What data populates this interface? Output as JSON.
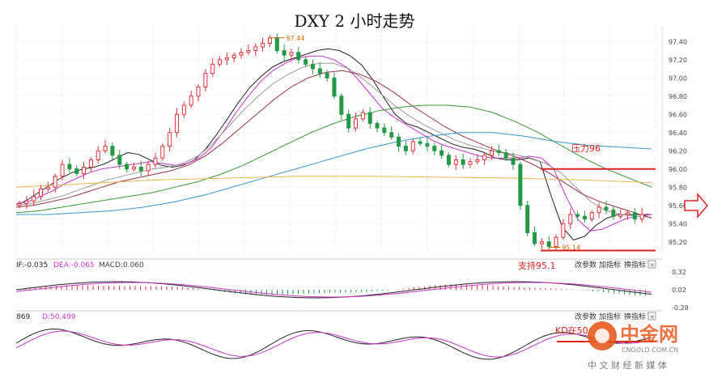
{
  "chart_data": {
    "type": "candlestick",
    "title": "DXY 2 小时走势",
    "ylim": [
      95.1,
      97.5
    ],
    "y_ticks": [
      "97.40",
      "97.20",
      "97.00",
      "96.80",
      "96.60",
      "96.40",
      "96.20",
      "96.00",
      "95.80",
      "95.60",
      "95.40",
      "95.20"
    ],
    "annotations": {
      "high_label": "97.44",
      "low_label": "95.14",
      "resistance_label": "压力96",
      "resistance_value": 96.0,
      "support_label": "支持95.1",
      "support_value": 95.14
    },
    "close_series": [
      95.62,
      95.65,
      95.7,
      95.78,
      95.8,
      95.92,
      96.05,
      96.0,
      95.95,
      96.02,
      96.1,
      96.2,
      96.25,
      96.15,
      96.05,
      96.0,
      96.02,
      95.98,
      96.05,
      96.12,
      96.25,
      96.4,
      96.6,
      96.7,
      96.8,
      96.9,
      97.05,
      97.15,
      97.2,
      97.22,
      97.25,
      97.28,
      97.3,
      97.34,
      97.38,
      97.44,
      97.3,
      97.25,
      97.28,
      97.2,
      97.15,
      97.1,
      97.05,
      97.0,
      96.8,
      96.6,
      96.45,
      96.55,
      96.62,
      96.5,
      96.45,
      96.4,
      96.35,
      96.25,
      96.2,
      96.3,
      96.28,
      96.25,
      96.2,
      96.15,
      96.05,
      96.1,
      96.05,
      96.08,
      96.1,
      96.15,
      96.2,
      96.18,
      96.12,
      96.05,
      95.6,
      95.3,
      95.18,
      95.2,
      95.15,
      95.25,
      95.4,
      95.5,
      95.48,
      95.45,
      95.52,
      95.58,
      95.55,
      95.48,
      95.5,
      95.52,
      95.45,
      95.5
    ],
    "ma_series": [
      {
        "color": "#222222",
        "values": [
          95.6,
          95.66,
          95.74,
          95.82,
          95.9,
          95.96,
          96.0,
          96.02,
          96.06,
          96.12,
          96.18,
          96.16,
          96.1,
          96.04,
          96.02,
          96.04,
          96.1,
          96.22,
          96.38,
          96.56,
          96.74,
          96.9,
          97.02,
          97.12,
          97.18,
          97.22,
          97.26,
          97.3,
          97.32,
          97.3,
          97.24,
          97.14,
          96.98,
          96.78,
          96.6,
          96.5,
          96.46,
          96.4,
          96.34,
          96.28,
          96.24,
          96.22,
          96.18,
          96.12,
          96.1,
          96.1,
          96.12,
          96.08,
          95.7,
          95.36,
          95.22,
          95.26,
          95.38,
          95.46,
          95.5,
          95.5,
          95.5,
          95.5
        ]
      },
      {
        "color": "#cc33cc",
        "values": [
          95.62,
          95.64,
          95.7,
          95.76,
          95.84,
          95.9,
          95.96,
          96.0,
          96.02,
          96.04,
          96.06,
          96.08,
          96.06,
          96.04,
          96.06,
          96.12,
          96.24,
          96.42,
          96.62,
          96.8,
          96.96,
          97.08,
          97.16,
          97.22,
          97.24,
          97.24,
          97.2,
          97.12,
          96.98,
          96.82,
          96.66,
          96.56,
          96.48,
          96.4,
          96.32,
          96.26,
          96.22,
          96.18,
          96.14,
          96.12,
          96.12,
          96.12,
          96.14,
          96.12,
          96.0,
          95.7,
          95.44,
          95.32,
          95.34,
          95.4,
          95.46,
          95.48,
          95.5
        ]
      },
      {
        "color": "#999999",
        "values": [
          95.6,
          95.62,
          95.66,
          95.7,
          95.76,
          95.82,
          95.88,
          95.92,
          95.96,
          96.0,
          96.02,
          96.06,
          96.14,
          96.28,
          96.46,
          96.64,
          96.8,
          96.94,
          97.04,
          97.12,
          97.16,
          97.16,
          97.1,
          96.98,
          96.84,
          96.7,
          96.58,
          96.48,
          96.4,
          96.32,
          96.26,
          96.22,
          96.18,
          96.16,
          96.12,
          96.06,
          95.96,
          95.8,
          95.64,
          95.54,
          95.5,
          95.48,
          95.47
        ]
      },
      {
        "color": "#993344",
        "values": [
          95.58,
          95.6,
          95.64,
          95.68,
          95.74,
          95.8,
          95.86,
          95.9,
          95.94,
          95.98,
          96.04,
          96.14,
          96.28,
          96.44,
          96.6,
          96.76,
          96.9,
          97.0,
          97.06,
          97.08,
          97.04,
          96.96,
          96.84,
          96.7,
          96.58,
          96.46,
          96.36,
          96.28,
          96.2,
          96.14,
          96.06,
          95.96,
          95.84,
          95.72,
          95.64,
          95.58,
          95.52,
          95.46
        ]
      },
      {
        "color": "#339933",
        "values": [
          95.52,
          95.54,
          95.58,
          95.62,
          95.66,
          95.7,
          95.74,
          95.8,
          95.86,
          95.94,
          96.04,
          96.16,
          96.28,
          96.4,
          96.5,
          96.58,
          96.64,
          96.68,
          96.7,
          96.7,
          96.68,
          96.62,
          96.52,
          96.4,
          96.26,
          96.12,
          96.0,
          95.9,
          95.8
        ]
      },
      {
        "color": "#3399cc",
        "values": [
          95.5,
          95.5,
          95.52,
          95.54,
          95.58,
          95.64,
          95.72,
          95.82,
          95.92,
          96.02,
          96.12,
          96.22,
          96.3,
          96.36,
          96.4,
          96.4,
          96.36,
          96.3,
          96.26,
          96.24,
          96.22
        ]
      },
      {
        "color": "#e6b84d",
        "values": [
          95.8,
          95.84,
          95.88,
          95.9,
          95.92,
          95.92,
          95.91,
          95.9,
          95.88,
          95.85
        ]
      }
    ],
    "indicator_1": {
      "label_prefix": "IF:-0.035",
      "dea_label": "DEA:-0.065",
      "macd_label": "MACD:0.060",
      "y_ticks": [
        "0.32",
        "0.02",
        "-0.28"
      ]
    },
    "indicator_2": {
      "label_prefix": "869",
      "d_label": "D:50.499",
      "annotation": "KD在50"
    }
  },
  "controls": {
    "btn_params": "改参数",
    "btn_add": "加指标",
    "btn_switch": "换指标",
    "btn_close": "×"
  },
  "watermark": {
    "brand": "中金网",
    "domain": "CNGOLD.COM.CN",
    "subtitle": "中 文 财 经 新 媒 体"
  }
}
